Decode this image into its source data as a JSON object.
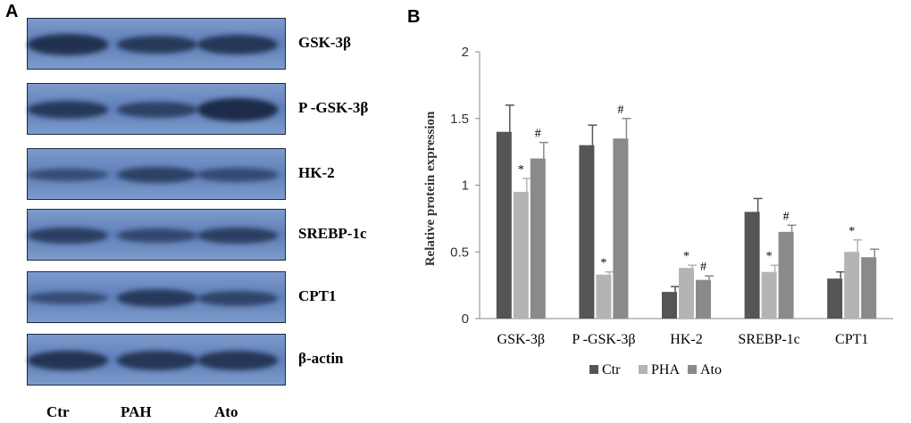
{
  "panel_a": {
    "letter": "A",
    "blots": [
      {
        "label": "GSK-3β",
        "intensity": [
          0.85,
          0.7,
          0.75
        ]
      },
      {
        "label": "P -GSK-3β",
        "intensity": [
          0.7,
          0.55,
          0.95
        ]
      },
      {
        "label": "HK-2",
        "intensity": [
          0.35,
          0.55,
          0.4
        ]
      },
      {
        "label": "SREBP-1c",
        "intensity": [
          0.6,
          0.45,
          0.6
        ]
      },
      {
        "label": "CPT1",
        "intensity": [
          0.35,
          0.7,
          0.5
        ]
      },
      {
        "label": "β-actin",
        "intensity": [
          0.8,
          0.75,
          0.75
        ]
      }
    ],
    "lanes": [
      "Ctr",
      "PAH",
      "Ato"
    ],
    "band_color": "#17243f",
    "background_color": "#5e7fb8"
  },
  "panel_b": {
    "letter": "B"
  },
  "chart_data": {
    "type": "bar",
    "categories": [
      "GSK-3β",
      "P -GSK-3β",
      "HK-2",
      "SREBP-1c",
      "CPT1"
    ],
    "series": [
      {
        "name": "Ctr",
        "color": "#555555",
        "values": [
          1.4,
          1.3,
          0.2,
          0.8,
          0.3
        ],
        "errors": [
          0.2,
          0.15,
          0.04,
          0.1,
          0.05
        ],
        "annotations": [
          "",
          "",
          "",
          "",
          ""
        ]
      },
      {
        "name": "PHA",
        "color": "#b4b4b4",
        "values": [
          0.95,
          0.33,
          0.38,
          0.35,
          0.5
        ],
        "errors": [
          0.1,
          0.02,
          0.02,
          0.05,
          0.09
        ],
        "annotations": [
          "*",
          "*",
          "*",
          "*",
          "*"
        ]
      },
      {
        "name": "Ato",
        "color": "#8a8a8a",
        "values": [
          1.2,
          1.35,
          0.29,
          0.65,
          0.46
        ],
        "errors": [
          0.12,
          0.15,
          0.03,
          0.05,
          0.06
        ],
        "annotations": [
          "#",
          "#",
          "#",
          "#",
          ""
        ]
      }
    ],
    "ylabel": "Relative protein expression",
    "xlabel": "",
    "ylim": [
      0,
      2
    ],
    "yticks": [
      "0",
      "0.5",
      "1",
      "1.5",
      "2"
    ],
    "grid": false,
    "legend_position": "bottom"
  }
}
